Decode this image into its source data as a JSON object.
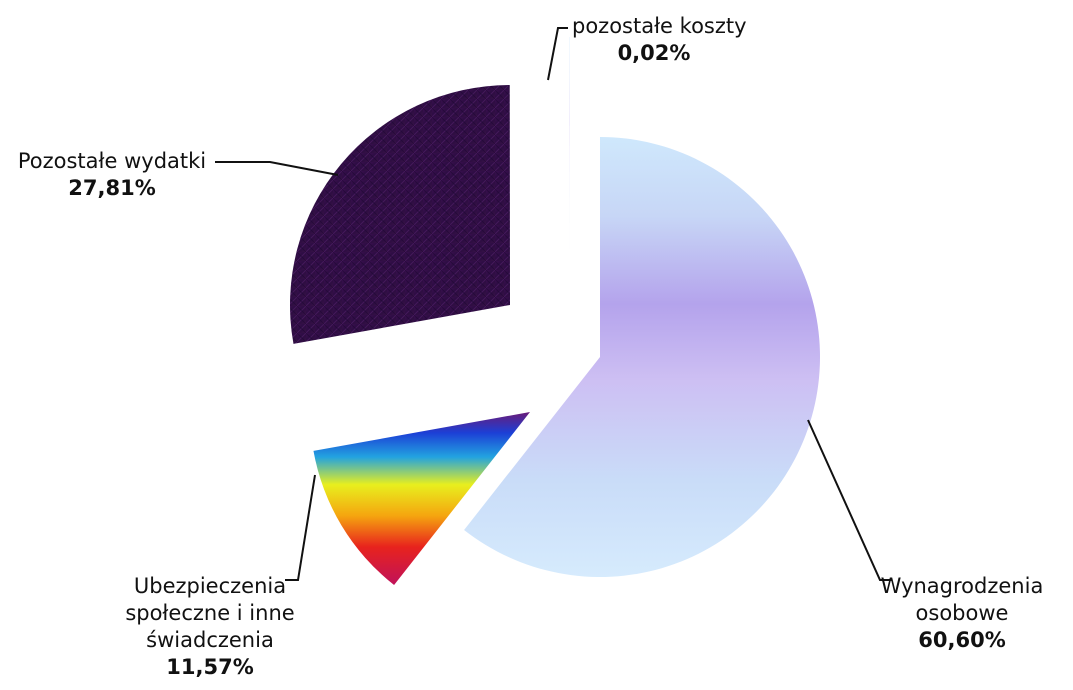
{
  "chart_data": {
    "type": "pie",
    "exploded": true,
    "legend": "none",
    "slices": [
      {
        "name_lines": [
          "Wynagrodzenia",
          "osobowe"
        ],
        "value": 60.6,
        "value_label": "60,60%",
        "fill": "vertical-gradient-lavender"
      },
      {
        "name_lines": [
          "Ubezpieczenia",
          "społeczne i inne",
          "świadczenia"
        ],
        "value": 11.57,
        "value_label": "11,57%",
        "fill": "rainbow"
      },
      {
        "name_lines": [
          "Pozostałe wydatki"
        ],
        "value": 27.81,
        "value_label": "27,81%",
        "fill": "dark-purple-texture"
      },
      {
        "name_lines": [
          "pozostałe koszty"
        ],
        "value": 0.02,
        "value_label": "0,02%",
        "fill": "none"
      }
    ],
    "colors": {
      "lavender_light": "#cfe6fb",
      "lavender_mid": "#b9a8ee",
      "dark_purple": "#2e0f45",
      "rainbow": [
        "#6a1b78",
        "#1c3fd6",
        "#22a3e0",
        "#e8ef1e",
        "#f5a50f",
        "#e8231d",
        "#c0125a"
      ]
    }
  }
}
